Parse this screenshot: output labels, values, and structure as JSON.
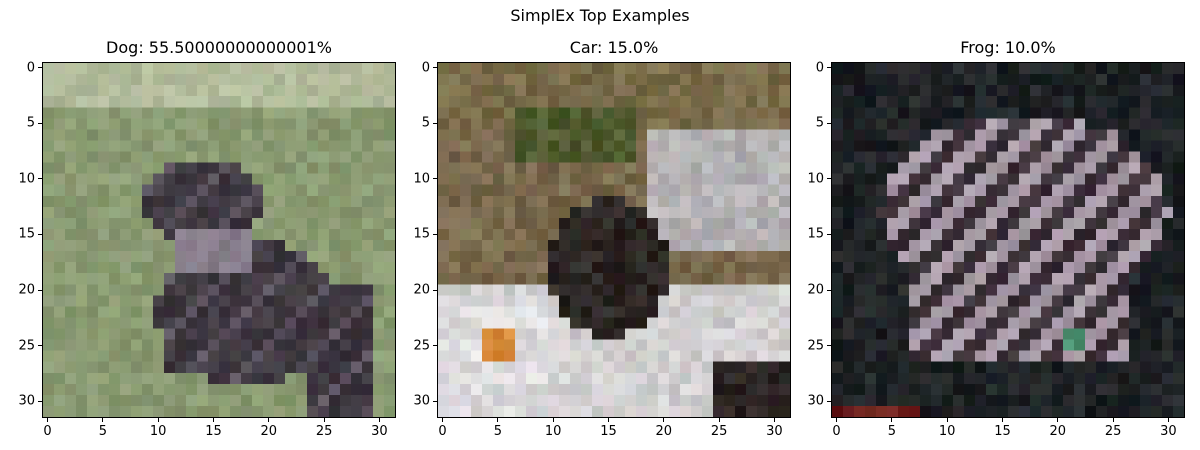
{
  "figure": {
    "suptitle": "SimplEx Top Examples"
  },
  "chart_data": [
    {
      "type": "image",
      "title": "Dog: 55.50000000000001%",
      "xlim": [
        -0.5,
        31.5
      ],
      "ylim": [
        31.5,
        -0.5
      ],
      "xticks": [
        0,
        5,
        10,
        15,
        20,
        25,
        30
      ],
      "yticks": [
        0,
        5,
        10,
        15,
        20,
        25,
        30
      ],
      "image_size": [
        32,
        32
      ],
      "palette": {
        "background": "#8a9a72",
        "top_band": "#b7bfa0",
        "subject": "#3e3840",
        "subject_light": "#6b6270"
      }
    },
    {
      "type": "image",
      "title": "Car: 15.0%",
      "xlim": [
        -0.5,
        31.5
      ],
      "ylim": [
        31.5,
        -0.5
      ],
      "xticks": [
        0,
        5,
        10,
        15,
        20,
        25,
        30
      ],
      "yticks": [
        0,
        5,
        10,
        15,
        20,
        25,
        30
      ],
      "image_size": [
        32,
        32
      ],
      "palette": {
        "background": "#7a6a4e",
        "foliage": "#4f5a2e",
        "car_body": "#c9c6c6",
        "dark": "#2c2624",
        "accent": "#d98a3a"
      }
    },
    {
      "type": "image",
      "title": "Frog: 10.0%",
      "xlim": [
        -0.5,
        31.5
      ],
      "ylim": [
        31.5,
        -0.5
      ],
      "xticks": [
        0,
        5,
        10,
        15,
        20,
        25,
        30
      ],
      "yticks": [
        0,
        5,
        10,
        15,
        20,
        25,
        30
      ],
      "image_size": [
        32,
        32
      ],
      "palette": {
        "background": "#1f2326",
        "frog_light": "#a89ba8",
        "frog_dark": "#3b3038",
        "accent": "#4c8f74",
        "red": "#6a1e1a"
      }
    }
  ]
}
